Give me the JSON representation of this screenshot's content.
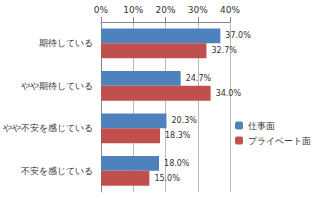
{
  "chart_data": {
    "type": "bar",
    "orientation": "horizontal",
    "categories": [
      "期待している",
      "やや期待している",
      "やや不安を感じている",
      "不安を感じている"
    ],
    "series": [
      {
        "name": "仕事面",
        "color": "#4f81bd",
        "values": [
          37.0,
          24.7,
          20.3,
          18.0
        ],
        "value_labels": [
          "37.0%",
          "24.7%",
          "20.3%",
          "18.0%"
        ]
      },
      {
        "name": "プライベート面",
        "color": "#c0504d",
        "values": [
          32.7,
          34.0,
          18.3,
          15.0
        ],
        "value_labels": [
          "32.7%",
          "34.0%",
          "18.3%",
          "15.0%"
        ]
      }
    ],
    "xlim": [
      0,
      40
    ],
    "xticks": [
      {
        "value": 0,
        "label": "0%"
      },
      {
        "value": 10,
        "label": "10%"
      },
      {
        "value": 20,
        "label": "20%"
      },
      {
        "value": 30,
        "label": "30%"
      },
      {
        "value": 40,
        "label": "40%"
      }
    ],
    "grid": true,
    "legend": "right",
    "data_labels": true
  }
}
